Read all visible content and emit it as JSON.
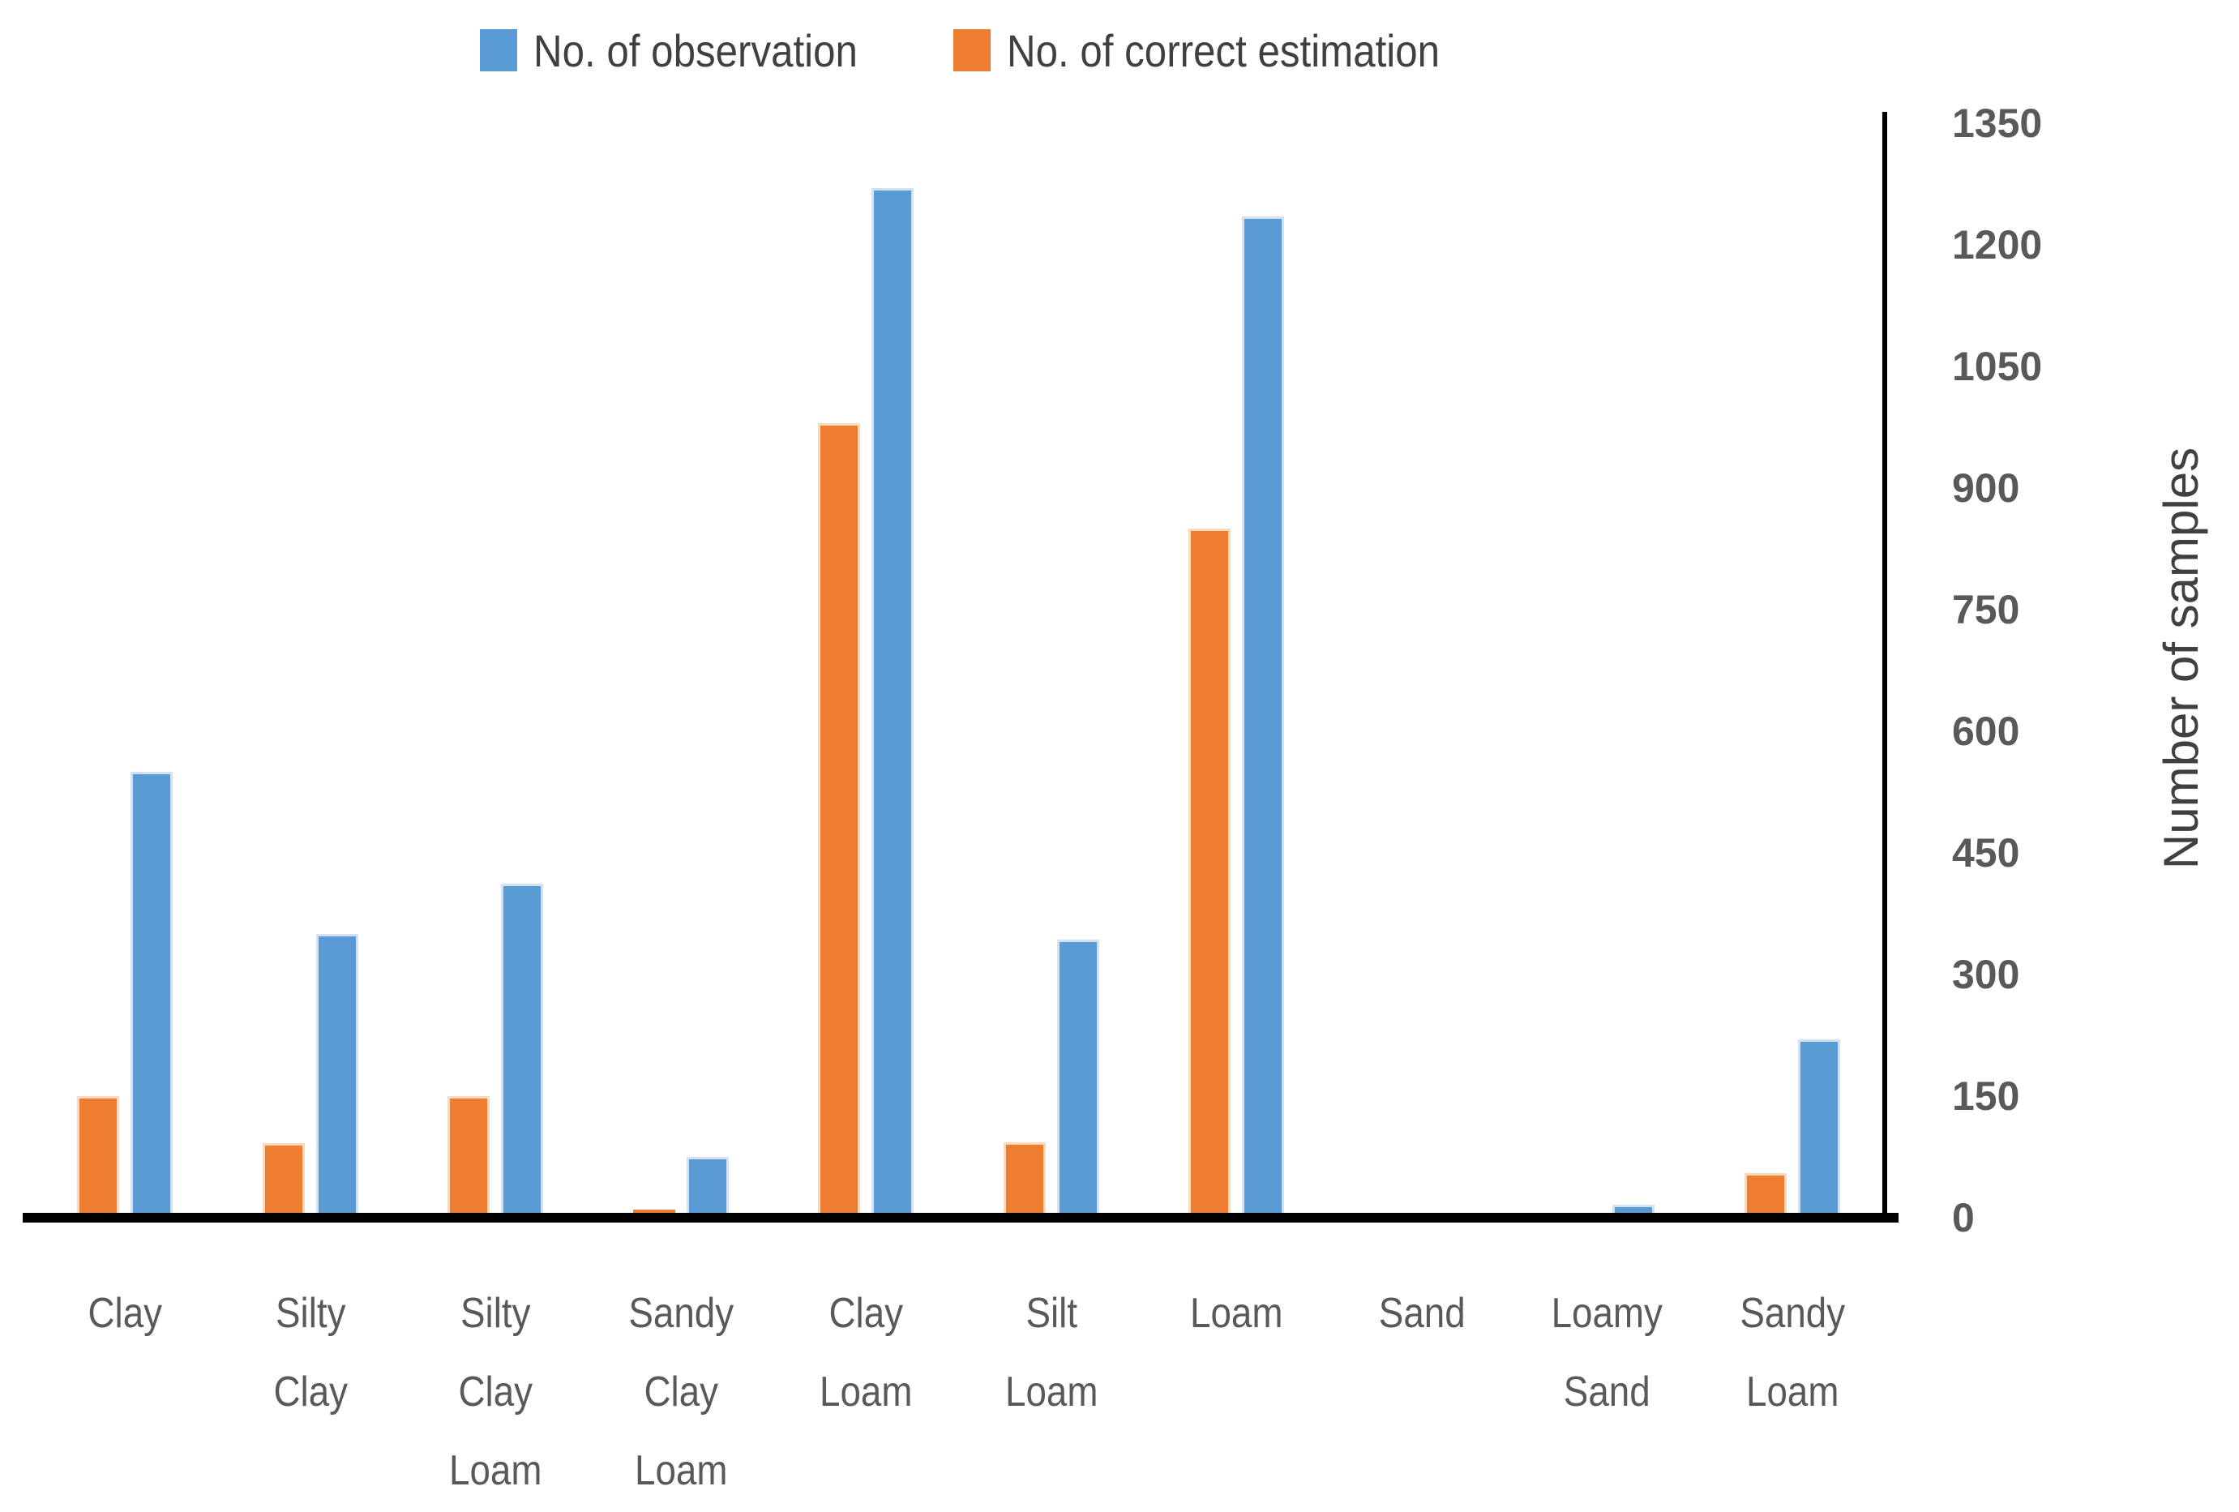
{
  "legend": {
    "items": [
      {
        "label": "No. of observation",
        "color": "#5B9BD5"
      },
      {
        "label": "No. of correct estimation",
        "color": "#ED7D31"
      }
    ]
  },
  "y_axis": {
    "title": "Number of samples",
    "ticks": [
      0,
      150,
      300,
      450,
      600,
      750,
      900,
      1050,
      1200,
      1350
    ]
  },
  "chart_data": {
    "type": "bar",
    "title": "",
    "xlabel": "",
    "ylabel": "Number of samples",
    "ylim": [
      0,
      1350
    ],
    "tick_step": 150,
    "grid": false,
    "legend_position": "top",
    "bar_order_note": "orange (correct estimation) drawn left of blue (observation) in each group",
    "categories": [
      "Clay",
      "Silty Clay",
      "Silty Clay Loam",
      "Sandy Clay Loam",
      "Clay Loam",
      "Silt Loam",
      "Loam",
      "Sand",
      "Loamy Sand",
      "Sandy Loam"
    ],
    "category_lines": [
      [
        "Clay"
      ],
      [
        "Silty",
        "Clay"
      ],
      [
        "Silty",
        "Clay",
        "Loam"
      ],
      [
        "Sandy",
        "Clay",
        "Loam"
      ],
      [
        "Clay",
        "Loam"
      ],
      [
        "Silt",
        "Loam"
      ],
      [
        "Loam"
      ],
      [
        "Sand"
      ],
      [
        "Loamy",
        "Sand"
      ],
      [
        "Sandy",
        "Loam"
      ]
    ],
    "series": [
      {
        "name": "No. of observation",
        "color": "#5B9BD5",
        "edge_color": "#D3E2F3",
        "values": [
          550,
          350,
          412,
          75,
          1270,
          343,
          1235,
          5,
          16,
          220
        ]
      },
      {
        "name": "No. of correct estimation",
        "color": "#ED7D31",
        "edge_color": "#FAD9BE",
        "values": [
          150,
          92,
          150,
          10,
          980,
          93,
          850,
          0,
          0,
          55
        ]
      }
    ]
  },
  "colors": {
    "axis_line": "#000000",
    "tick_text": "#595959",
    "legend_text": "#404040",
    "background": "#FFFFFF"
  }
}
